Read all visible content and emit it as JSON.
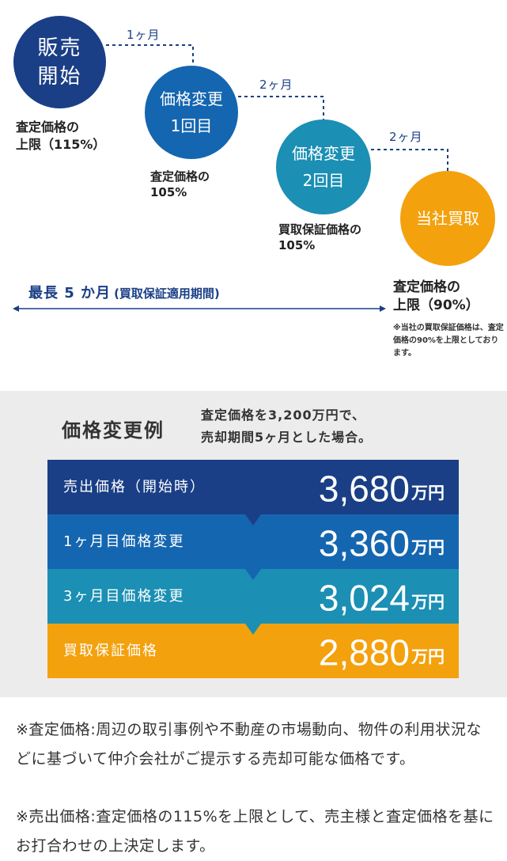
{
  "timeline": {
    "stages": [
      {
        "line1": "販売",
        "line2": "開始",
        "caption": [
          "査定価格の",
          "上限（115%）"
        ],
        "color": "#1a3f86"
      },
      {
        "line1": "価格変更",
        "line2": "1回目",
        "caption": [
          "査定価格の",
          "105%"
        ],
        "color": "#1566b0"
      },
      {
        "line1": "価格変更",
        "line2": "2回目",
        "caption": [
          "買取保証価格の",
          "105%"
        ],
        "color": "#1b8fb4"
      },
      {
        "line1": "当社買取",
        "caption": [
          "査定価格の",
          "上限（90%）"
        ],
        "color": "#f3a10d"
      }
    ],
    "intervals": [
      "1ヶ月",
      "2ヶ月",
      "2ヶ月"
    ],
    "span_label": "最長 5 か月",
    "span_sub": "(買取保証適用期間)",
    "note": "※当社の買取保証価格は、査定価格の90%を上限としております。"
  },
  "example": {
    "title": "価格変更例",
    "subtitle": [
      "査定価格を3,200万円で、",
      "売却期間5ヶ月とした場合。"
    ],
    "rows": [
      {
        "label": "売出価格（開始時）",
        "value": "3,680",
        "unit": "万円",
        "color": "#1a3f86"
      },
      {
        "label": "1ヶ月目価格変更",
        "value": "3,360",
        "unit": "万円",
        "color": "#1566b0"
      },
      {
        "label": "3ヶ月目価格変更",
        "value": "3,024",
        "unit": "万円",
        "color": "#1b8fb4"
      },
      {
        "label": "買取保証価格",
        "value": "2,880",
        "unit": "万円",
        "color": "#f3a10d"
      }
    ]
  },
  "footnotes": [
    "※査定価格:周辺の取引事例や不動産の市場動向、物件の利用状況などに基づいて仲介会社がご提示する売却可能な価格です。",
    "※売出価格:査定価格の115%を上限として、売主様と査定価格を基にお打合わせの上決定します。"
  ]
}
